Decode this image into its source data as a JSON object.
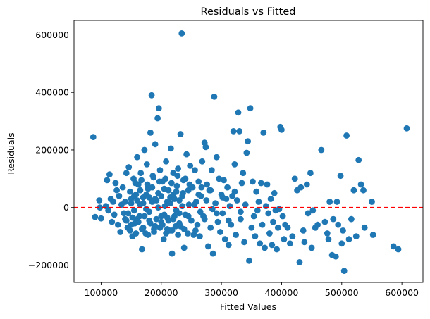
{
  "chart_data": {
    "type": "scatter",
    "title": "Residuals vs Fitted",
    "xlabel": "Fitted Values",
    "ylabel": "Residuals",
    "xlim": [
      55000,
      635000
    ],
    "ylim": [
      -260000,
      650000
    ],
    "xticks": [
      100000,
      200000,
      300000,
      400000,
      500000,
      600000
    ],
    "xtick_labels": [
      "100000",
      "200000",
      "300000",
      "400000",
      "500000",
      "600000"
    ],
    "yticks": [
      -200000,
      0,
      200000,
      400000,
      600000
    ],
    "ytick_labels": [
      "−200000",
      "0",
      "200000",
      "400000",
      "600000"
    ],
    "reference_line": {
      "y": 0,
      "style": "dashed",
      "color": "#ff0000"
    },
    "marker_color": "#1f77b4",
    "grid": false,
    "points": [
      [
        87000,
        245000
      ],
      [
        97000,
        25000
      ],
      [
        98000,
        0
      ],
      [
        100000,
        -38000
      ],
      [
        90000,
        -33000
      ],
      [
        108000,
        5000
      ],
      [
        110000,
        95000
      ],
      [
        112000,
        -10000
      ],
      [
        114000,
        115000
      ],
      [
        116000,
        30000
      ],
      [
        118000,
        -50000
      ],
      [
        120000,
        20000
      ],
      [
        122000,
        -25000
      ],
      [
        124000,
        85000
      ],
      [
        126000,
        60000
      ],
      [
        128000,
        -60000
      ],
      [
        130000,
        40000
      ],
      [
        132000,
        -85000
      ],
      [
        134000,
        10000
      ],
      [
        136000,
        70000
      ],
      [
        138000,
        -20000
      ],
      [
        140000,
        -40000
      ],
      [
        142000,
        120000
      ],
      [
        144000,
        -70000
      ],
      [
        146000,
        140000
      ],
      [
        148000,
        55000
      ],
      [
        150000,
        15000
      ],
      [
        152000,
        -100000
      ],
      [
        154000,
        100000
      ],
      [
        156000,
        -55000
      ],
      [
        158000,
        45000
      ],
      [
        160000,
        175000
      ],
      [
        162000,
        80000
      ],
      [
        164000,
        -30000
      ],
      [
        166000,
        120000
      ],
      [
        168000,
        -145000
      ],
      [
        170000,
        35000
      ],
      [
        172000,
        200000
      ],
      [
        174000,
        -90000
      ],
      [
        176000,
        150000
      ],
      [
        178000,
        65000
      ],
      [
        180000,
        -15000
      ],
      [
        182000,
        260000
      ],
      [
        184000,
        390000
      ],
      [
        186000,
        110000
      ],
      [
        188000,
        -75000
      ],
      [
        190000,
        220000
      ],
      [
        192000,
        25000
      ],
      [
        194000,
        310000
      ],
      [
        196000,
        345000
      ],
      [
        198000,
        130000
      ],
      [
        200000,
        -50000
      ],
      [
        202000,
        90000
      ],
      [
        204000,
        -110000
      ],
      [
        206000,
        5000
      ],
      [
        208000,
        160000
      ],
      [
        210000,
        -35000
      ],
      [
        212000,
        60000
      ],
      [
        214000,
        -80000
      ],
      [
        216000,
        205000
      ],
      [
        218000,
        -160000
      ],
      [
        220000,
        120000
      ],
      [
        222000,
        30000
      ],
      [
        224000,
        -65000
      ],
      [
        226000,
        75000
      ],
      [
        228000,
        135000
      ],
      [
        230000,
        -20000
      ],
      [
        232000,
        255000
      ],
      [
        234000,
        605000
      ],
      [
        236000,
        50000
      ],
      [
        238000,
        -140000
      ],
      [
        240000,
        100000
      ],
      [
        242000,
        185000
      ],
      [
        244000,
        -90000
      ],
      [
        246000,
        10000
      ],
      [
        248000,
        145000
      ],
      [
        250000,
        -45000
      ],
      [
        252000,
        70000
      ],
      [
        254000,
        -95000
      ],
      [
        256000,
        130000
      ],
      [
        258000,
        20000
      ],
      [
        260000,
        -60000
      ],
      [
        262000,
        90000
      ],
      [
        264000,
        -100000
      ],
      [
        266000,
        40000
      ],
      [
        268000,
        160000
      ],
      [
        270000,
        -30000
      ],
      [
        272000,
        225000
      ],
      [
        274000,
        210000
      ],
      [
        276000,
        80000
      ],
      [
        278000,
        -135000
      ],
      [
        280000,
        60000
      ],
      [
        282000,
        -70000
      ],
      [
        284000,
        130000
      ],
      [
        286000,
        -160000
      ],
      [
        288000,
        385000
      ],
      [
        290000,
        15000
      ],
      [
        292000,
        175000
      ],
      [
        294000,
        -50000
      ],
      [
        296000,
        100000
      ],
      [
        298000,
        -85000
      ],
      [
        300000,
        45000
      ],
      [
        302000,
        -20000
      ],
      [
        304000,
        95000
      ],
      [
        306000,
        -110000
      ],
      [
        308000,
        30000
      ],
      [
        310000,
        70000
      ],
      [
        312000,
        -130000
      ],
      [
        314000,
        5000
      ],
      [
        316000,
        -60000
      ],
      [
        318000,
        40000
      ],
      [
        320000,
        265000
      ],
      [
        322000,
        150000
      ],
      [
        324000,
        -95000
      ],
      [
        326000,
        25000
      ],
      [
        328000,
        330000
      ],
      [
        330000,
        265000
      ],
      [
        332000,
        -40000
      ],
      [
        334000,
        85000
      ],
      [
        336000,
        120000
      ],
      [
        338000,
        -120000
      ],
      [
        340000,
        10000
      ],
      [
        342000,
        190000
      ],
      [
        344000,
        230000
      ],
      [
        346000,
        -185000
      ],
      [
        348000,
        345000
      ],
      [
        350000,
        -70000
      ],
      [
        352000,
        90000
      ],
      [
        354000,
        -30000
      ],
      [
        356000,
        -100000
      ],
      [
        358000,
        55000
      ],
      [
        360000,
        -10000
      ],
      [
        362000,
        20000
      ],
      [
        364000,
        -125000
      ],
      [
        366000,
        85000
      ],
      [
        368000,
        -60000
      ],
      [
        370000,
        260000
      ],
      [
        372000,
        -140000
      ],
      [
        374000,
        5000
      ],
      [
        376000,
        80000
      ],
      [
        378000,
        -20000
      ],
      [
        380000,
        -90000
      ],
      [
        382000,
        30000
      ],
      [
        384000,
        -130000
      ],
      [
        386000,
        -50000
      ],
      [
        388000,
        50000
      ],
      [
        390000,
        -10000
      ],
      [
        392000,
        -145000
      ],
      [
        394000,
        -70000
      ],
      [
        396000,
        -5000
      ],
      [
        398000,
        280000
      ],
      [
        400000,
        270000
      ],
      [
        402000,
        -30000
      ],
      [
        404000,
        -110000
      ],
      [
        406000,
        -60000
      ],
      [
        410000,
        -70000
      ],
      [
        414000,
        -125000
      ],
      [
        418000,
        -100000
      ],
      [
        422000,
        100000
      ],
      [
        426000,
        60000
      ],
      [
        430000,
        -190000
      ],
      [
        432000,
        70000
      ],
      [
        436000,
        -80000
      ],
      [
        438000,
        -120000
      ],
      [
        442000,
        80000
      ],
      [
        444000,
        -20000
      ],
      [
        448000,
        120000
      ],
      [
        450000,
        -140000
      ],
      [
        452000,
        -10000
      ],
      [
        456000,
        -70000
      ],
      [
        460000,
        -60000
      ],
      [
        466000,
        200000
      ],
      [
        472000,
        -50000
      ],
      [
        476000,
        -90000
      ],
      [
        478000,
        -110000
      ],
      [
        480000,
        20000
      ],
      [
        484000,
        -165000
      ],
      [
        486000,
        -40000
      ],
      [
        490000,
        -170000
      ],
      [
        492000,
        20000
      ],
      [
        494000,
        -60000
      ],
      [
        498000,
        110000
      ],
      [
        500000,
        -125000
      ],
      [
        502000,
        -80000
      ],
      [
        504000,
        -220000
      ],
      [
        508000,
        250000
      ],
      [
        512000,
        -110000
      ],
      [
        516000,
        -40000
      ],
      [
        520000,
        60000
      ],
      [
        524000,
        -100000
      ],
      [
        528000,
        165000
      ],
      [
        532000,
        80000
      ],
      [
        536000,
        60000
      ],
      [
        538000,
        -70000
      ],
      [
        550000,
        20000
      ],
      [
        552000,
        -95000
      ],
      [
        586000,
        -135000
      ],
      [
        594000,
        -145000
      ],
      [
        608000,
        275000
      ],
      [
        145000,
        -20000
      ],
      [
        155000,
        -10000
      ],
      [
        165000,
        10000
      ],
      [
        175000,
        -5000
      ],
      [
        185000,
        20000
      ],
      [
        195000,
        0
      ],
      [
        205000,
        -25000
      ],
      [
        215000,
        15000
      ],
      [
        225000,
        -10000
      ],
      [
        235000,
        5000
      ],
      [
        245000,
        -30000
      ],
      [
        255000,
        10000
      ],
      [
        265000,
        -15000
      ],
      [
        275000,
        25000
      ],
      [
        285000,
        -5000
      ],
      [
        150000,
        -60000
      ],
      [
        160000,
        -40000
      ],
      [
        170000,
        -70000
      ],
      [
        180000,
        -45000
      ],
      [
        190000,
        -65000
      ],
      [
        200000,
        -30000
      ],
      [
        210000,
        -75000
      ],
      [
        220000,
        -40000
      ],
      [
        230000,
        -55000
      ],
      [
        240000,
        -25000
      ],
      [
        155000,
        40000
      ],
      [
        165000,
        60000
      ],
      [
        175000,
        45000
      ],
      [
        185000,
        70000
      ],
      [
        195000,
        50000
      ],
      [
        205000,
        65000
      ],
      [
        215000,
        35000
      ],
      [
        225000,
        55000
      ],
      [
        235000,
        40000
      ],
      [
        245000,
        60000
      ],
      [
        140000,
        20000
      ],
      [
        150000,
        30000
      ],
      [
        160000,
        25000
      ],
      [
        170000,
        15000
      ],
      [
        180000,
        35000
      ],
      [
        190000,
        30000
      ],
      [
        200000,
        40000
      ],
      [
        210000,
        20000
      ],
      [
        220000,
        45000
      ],
      [
        230000,
        25000
      ],
      [
        142000,
        -45000
      ],
      [
        152000,
        -35000
      ],
      [
        162000,
        -50000
      ],
      [
        172000,
        -30000
      ],
      [
        182000,
        -55000
      ],
      [
        192000,
        -40000
      ],
      [
        202000,
        -60000
      ],
      [
        212000,
        -45000
      ],
      [
        222000,
        -30000
      ],
      [
        232000,
        -65000
      ],
      [
        157000,
        85000
      ],
      [
        167000,
        95000
      ],
      [
        177000,
        80000
      ],
      [
        187000,
        105000
      ],
      [
        197000,
        90000
      ],
      [
        207000,
        100000
      ],
      [
        217000,
        85000
      ],
      [
        227000,
        110000
      ],
      [
        237000,
        95000
      ],
      [
        247000,
        80000
      ],
      [
        148000,
        -80000
      ],
      [
        158000,
        -90000
      ],
      [
        168000,
        -75000
      ],
      [
        178000,
        -95000
      ],
      [
        188000,
        -85000
      ],
      [
        198000,
        -70000
      ],
      [
        208000,
        -90000
      ],
      [
        218000,
        -80000
      ],
      [
        228000,
        -95000
      ],
      [
        238000,
        -75000
      ],
      [
        262000,
        45000
      ],
      [
        272000,
        -40000
      ],
      [
        282000,
        60000
      ],
      [
        292000,
        -20000
      ],
      [
        302000,
        35000
      ],
      [
        312000,
        -45000
      ],
      [
        322000,
        55000
      ],
      [
        332000,
        -15000
      ],
      [
        257000,
        -80000
      ],
      [
        267000,
        70000
      ]
    ]
  }
}
